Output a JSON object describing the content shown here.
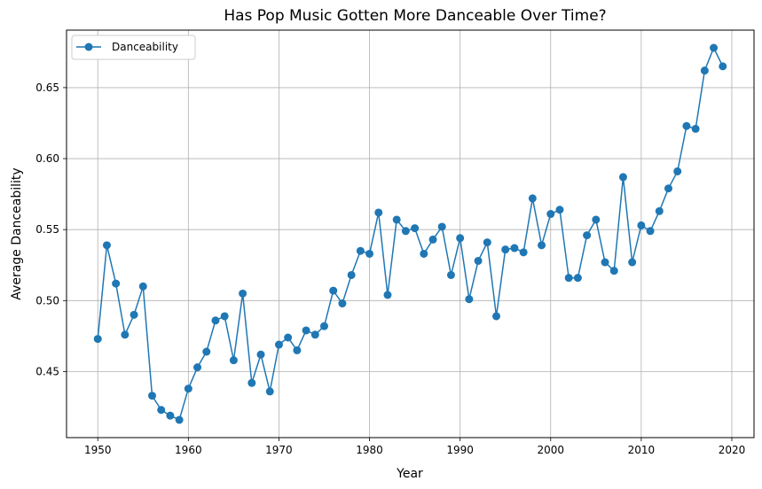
{
  "chart_data": {
    "type": "line",
    "title": "Has Pop Music Gotten More Danceable Over Time?",
    "xlabel": "Year",
    "ylabel": "Average Danceability",
    "xlim": [
      1946.55,
      2022.45
    ],
    "ylim": [
      0.4035,
      0.6905
    ],
    "x_ticks": [
      1950,
      1960,
      1970,
      1980,
      1990,
      2000,
      2010,
      2020
    ],
    "y_ticks": [
      0.45,
      0.5,
      0.55,
      0.6,
      0.65
    ],
    "x_tick_labels": [
      "1950",
      "1960",
      "1970",
      "1980",
      "1990",
      "2000",
      "2010",
      "2020"
    ],
    "y_tick_labels": [
      "0.45",
      "0.50",
      "0.55",
      "0.60",
      "0.65"
    ],
    "grid": true,
    "legend_position": "top-left",
    "series": [
      {
        "name": "Danceability",
        "color": "#1f77b4",
        "marker": "circle",
        "x": [
          1950,
          1951,
          1952,
          1953,
          1954,
          1955,
          1956,
          1957,
          1958,
          1959,
          1960,
          1961,
          1962,
          1963,
          1964,
          1965,
          1966,
          1967,
          1968,
          1969,
          1970,
          1971,
          1972,
          1973,
          1974,
          1975,
          1976,
          1977,
          1978,
          1979,
          1980,
          1981,
          1982,
          1983,
          1984,
          1985,
          1986,
          1987,
          1988,
          1989,
          1990,
          1991,
          1992,
          1993,
          1994,
          1995,
          1996,
          1997,
          1998,
          1999,
          2000,
          2001,
          2002,
          2003,
          2004,
          2005,
          2006,
          2007,
          2008,
          2009,
          2010,
          2011,
          2012,
          2013,
          2014,
          2015,
          2016,
          2017,
          2018,
          2019
        ],
        "values": [
          0.473,
          0.539,
          0.512,
          0.476,
          0.49,
          0.51,
          0.433,
          0.423,
          0.419,
          0.416,
          0.438,
          0.453,
          0.464,
          0.486,
          0.489,
          0.458,
          0.505,
          0.442,
          0.462,
          0.436,
          0.469,
          0.474,
          0.465,
          0.479,
          0.476,
          0.482,
          0.507,
          0.498,
          0.518,
          0.535,
          0.533,
          0.562,
          0.504,
          0.557,
          0.549,
          0.551,
          0.533,
          0.543,
          0.552,
          0.518,
          0.544,
          0.501,
          0.528,
          0.541,
          0.489,
          0.536,
          0.537,
          0.534,
          0.572,
          0.539,
          0.561,
          0.564,
          0.516,
          0.516,
          0.546,
          0.557,
          0.527,
          0.521,
          0.587,
          0.527,
          0.553,
          0.549,
          0.563,
          0.579,
          0.591,
          0.623,
          0.621,
          0.662,
          0.678,
          0.665
        ]
      }
    ]
  }
}
